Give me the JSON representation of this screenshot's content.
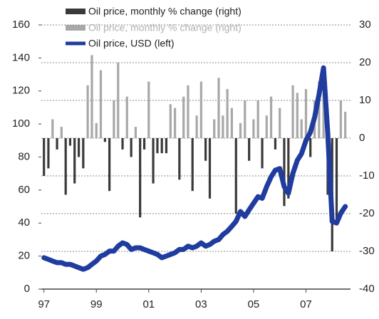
{
  "chart_data": {
    "type": "bar-line",
    "x": [
      1997.0,
      1997.17,
      1997.33,
      1997.5,
      1997.67,
      1997.83,
      1998.0,
      1998.17,
      1998.33,
      1998.5,
      1998.67,
      1998.83,
      1999.0,
      1999.17,
      1999.33,
      1999.5,
      1999.67,
      1999.83,
      2000.0,
      2000.17,
      2000.33,
      2000.5,
      2000.67,
      2000.83,
      2001.0,
      2001.17,
      2001.33,
      2001.5,
      2001.67,
      2001.83,
      2002.0,
      2002.17,
      2002.33,
      2002.5,
      2002.67,
      2002.83,
      2003.0,
      2003.17,
      2003.33,
      2003.5,
      2003.67,
      2003.83,
      2004.0,
      2004.17,
      2004.33,
      2004.5,
      2004.67,
      2004.83,
      2005.0,
      2005.17,
      2005.33,
      2005.5,
      2005.67,
      2005.83,
      2006.0,
      2006.17,
      2006.33,
      2006.5,
      2006.67,
      2006.83,
      2007.0,
      2007.17,
      2007.33,
      2007.5,
      2007.67,
      2007.83,
      2008.0,
      2008.17,
      2008.33,
      2008.5
    ],
    "series": [
      {
        "name": "Oil price, monthly % change (right)",
        "color": "#3a3a3a",
        "axis": "y2",
        "kind": "bar",
        "values": [
          -10,
          -8,
          null,
          -3,
          null,
          -15,
          -2,
          -12,
          -5,
          -8,
          null,
          null,
          null,
          null,
          -1,
          -14,
          null,
          null,
          -3,
          null,
          -5,
          null,
          -21,
          -3,
          null,
          -12,
          -4,
          -4,
          -4,
          null,
          null,
          -11,
          null,
          null,
          -14,
          null,
          null,
          -6,
          -16,
          null,
          null,
          null,
          null,
          null,
          -20,
          null,
          null,
          -6,
          null,
          null,
          -8,
          null,
          null,
          -3,
          null,
          -18,
          -16,
          null,
          null,
          null,
          null,
          -5,
          null,
          null,
          null,
          -15,
          -30,
          -22,
          null,
          null
        ]
      },
      {
        "name": "Oil price, monthly % change (right)",
        "color": "#a8a8a8",
        "axis": "y2",
        "kind": "bar",
        "values": [
          null,
          null,
          5,
          null,
          3,
          null,
          null,
          null,
          null,
          null,
          14,
          22,
          4,
          18,
          null,
          null,
          10,
          20,
          null,
          11,
          null,
          3,
          null,
          null,
          15,
          null,
          null,
          null,
          null,
          9,
          8,
          null,
          11,
          14,
          null,
          6,
          15,
          null,
          null,
          5,
          16,
          6,
          13,
          8,
          null,
          4,
          10,
          null,
          5,
          10,
          null,
          6,
          11,
          null,
          8,
          null,
          null,
          14,
          12,
          5,
          13,
          null,
          10,
          15,
          18,
          null,
          null,
          null,
          10,
          7
        ]
      },
      {
        "name": "Oil price, USD (left)",
        "color": "#1f3c9e",
        "axis": "y",
        "kind": "line",
        "values": [
          19,
          18,
          17,
          16,
          16,
          15,
          15,
          14,
          13,
          12,
          13,
          15,
          17,
          20,
          21,
          23,
          23,
          26,
          28,
          27,
          24,
          25,
          25,
          24,
          23,
          22,
          21,
          19,
          20,
          21,
          22,
          24,
          24,
          26,
          25,
          26,
          28,
          26,
          27,
          29,
          30,
          33,
          35,
          38,
          41,
          47,
          44,
          48,
          52,
          56,
          55,
          62,
          68,
          72,
          73,
          62,
          58,
          70,
          78,
          82,
          90,
          95,
          104,
          118,
          134,
          95,
          41,
          40,
          46,
          50
        ]
      }
    ],
    "xlim": [
      1996.9,
      2008.7
    ],
    "xticks": [
      {
        "value": 1997,
        "label": "97"
      },
      {
        "value": 1999,
        "label": "99"
      },
      {
        "value": 2001,
        "label": "01"
      },
      {
        "value": 2003,
        "label": "03"
      },
      {
        "value": 2005,
        "label": "05"
      },
      {
        "value": 2007,
        "label": "07"
      }
    ],
    "ylim": [
      0,
      160
    ],
    "yticks": [
      0,
      20,
      40,
      60,
      80,
      100,
      120,
      140,
      160
    ],
    "y2lim": [
      -40,
      30
    ],
    "y2ticks": [
      -40,
      -30,
      -20,
      -10,
      0,
      10,
      20,
      30
    ],
    "grid": true
  }
}
